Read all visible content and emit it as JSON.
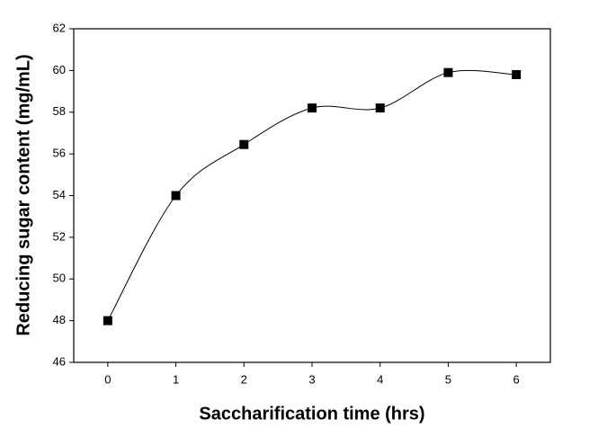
{
  "chart_data": {
    "type": "line",
    "x_label": "Saccharification time (hrs)",
    "y_label": "Reducing sugar content (mg/mL)",
    "x": [
      0,
      1,
      2,
      3,
      4,
      5,
      6
    ],
    "series": [
      {
        "color": "#000000",
        "values": [
          48,
          54,
          56.45,
          58.2,
          58.2,
          59.9,
          59.8
        ]
      }
    ],
    "xlim": [
      -0.5,
      6.5
    ],
    "xticks": [
      0,
      1,
      2,
      3,
      4,
      5,
      6
    ],
    "ylim": [
      46,
      62
    ],
    "yticks": [
      46,
      48,
      50,
      52,
      54,
      56,
      58,
      60,
      62
    ],
    "smooth": true,
    "marker": "square"
  }
}
